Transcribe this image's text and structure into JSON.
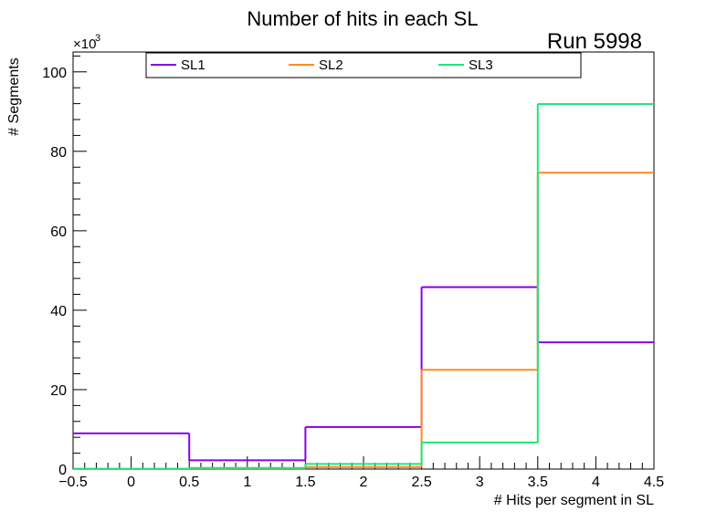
{
  "chart_data": {
    "type": "histogram-step",
    "title": "Number of hits in each SL",
    "annotation": "Run 5998",
    "xlabel": "# Hits per segment in SL",
    "ylabel": "# Segments",
    "y_multiplier_base": "×10",
    "y_multiplier_exp": "3",
    "xlim": [
      -0.5,
      4.5
    ],
    "ylim": [
      0,
      105
    ],
    "bin_edges": [
      -0.5,
      0.5,
      1.5,
      2.5,
      3.5,
      4.5
    ],
    "x_ticks": [
      -0.5,
      0,
      0.5,
      1,
      1.5,
      2,
      2.5,
      3,
      3.5,
      4,
      4.5
    ],
    "x_tick_labels": [
      "−0.5",
      "0",
      "0.5",
      "1",
      "1.5",
      "2",
      "2.5",
      "3",
      "3.5",
      "4",
      "4.5"
    ],
    "y_ticks": [
      0,
      20,
      40,
      60,
      80,
      100
    ],
    "y_tick_labels": [
      "0",
      "20",
      "40",
      "60",
      "80",
      "100"
    ],
    "series": [
      {
        "name": "SL1",
        "color": "#8a00e6",
        "values": [
          9.0,
          2.2,
          10.6,
          45.8,
          31.9
        ]
      },
      {
        "name": "SL2",
        "color": "#ff8a1f",
        "values": [
          0.0,
          0.2,
          0.5,
          25.0,
          74.6
        ]
      },
      {
        "name": "SL3",
        "color": "#1ee67a",
        "values": [
          0.1,
          0.3,
          1.3,
          6.7,
          91.9
        ]
      }
    ],
    "legend_placement": "top"
  }
}
